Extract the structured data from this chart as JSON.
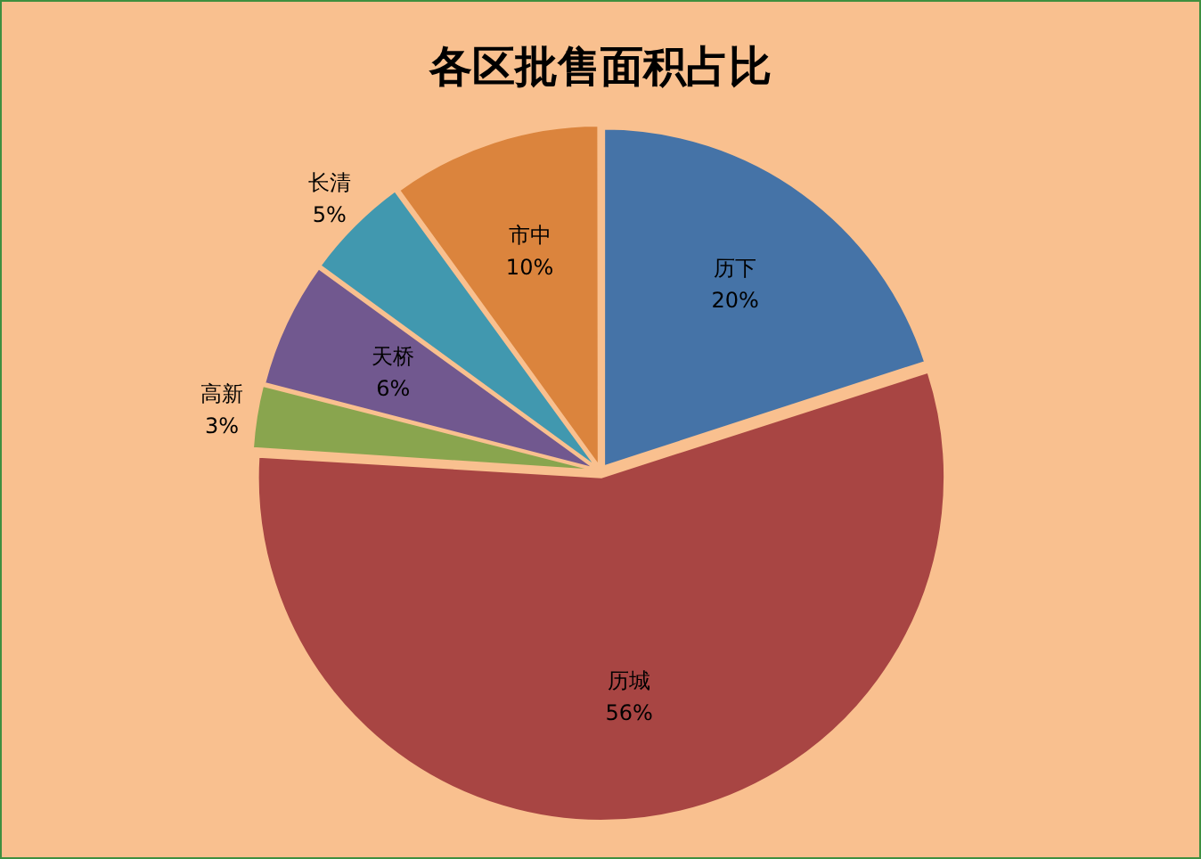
{
  "chart_data": {
    "type": "pie",
    "title": "各区批售面积占比",
    "categories": [
      "历下",
      "历城",
      "高新",
      "天桥",
      "长清",
      "市中"
    ],
    "values": [
      20,
      56,
      3,
      6,
      5,
      10
    ],
    "colors": [
      "#4573a7",
      "#a84543",
      "#89a54e",
      "#71588f",
      "#4198af",
      "#db843d"
    ],
    "value_labels": [
      "20%",
      "56%",
      "3%",
      "6%",
      "5%",
      "10%"
    ]
  }
}
